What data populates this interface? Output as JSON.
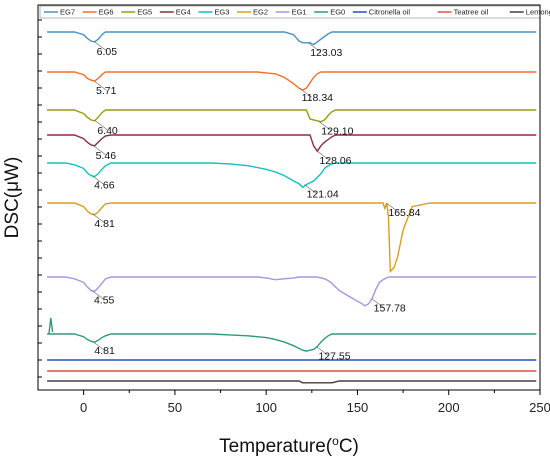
{
  "chart_data": {
    "type": "line",
    "xlabel": "Temperature(",
    "xlabel_sup": "o",
    "xlabel_tail": "C)",
    "ylabel": "DSC(μW)",
    "xlim": [
      -25,
      250
    ],
    "xticks": [
      0,
      50,
      100,
      150,
      200,
      250
    ],
    "grid": false,
    "legend_position": "top",
    "x": [
      -20,
      -15,
      -10,
      -5,
      0,
      2,
      4,
      6,
      8,
      10,
      12,
      15,
      20,
      30,
      40,
      50,
      60,
      70,
      80,
      90,
      95,
      100,
      105,
      110,
      115,
      118,
      120,
      122,
      124,
      126,
      128,
      130,
      132,
      134,
      136,
      138,
      140,
      145,
      150,
      152,
      154,
      156,
      158,
      160,
      162,
      164,
      165,
      166,
      167,
      168,
      170,
      172,
      175,
      180,
      190,
      200,
      210,
      220,
      230,
      240,
      248
    ],
    "series": [
      {
        "name": "EG7",
        "color": "#4a90c4",
        "offset": 0,
        "values": [
          0,
          0,
          0,
          0,
          -0.15,
          -0.35,
          -0.5,
          -0.55,
          -0.4,
          -0.15,
          0,
          0,
          0,
          0,
          0,
          0,
          0,
          0,
          0,
          0,
          0,
          0,
          0,
          0,
          -0.15,
          -0.5,
          -0.6,
          -0.6,
          -0.6,
          -0.7,
          -0.55,
          -0.4,
          -0.25,
          -0.1,
          0,
          0,
          0,
          0,
          0,
          0,
          0,
          0,
          0,
          0,
          0,
          0,
          0,
          0,
          0,
          0,
          0,
          0,
          0,
          0,
          0,
          0,
          0,
          0,
          0,
          0,
          0
        ]
      },
      {
        "name": "EG6",
        "color": "#f07030",
        "offset": 0,
        "values": [
          0,
          0,
          0,
          0,
          -0.15,
          -0.35,
          -0.45,
          -0.5,
          -0.35,
          -0.15,
          0,
          0,
          0,
          0,
          0,
          0,
          0,
          0,
          0,
          0,
          0,
          -0.05,
          -0.1,
          -0.3,
          -0.65,
          -0.9,
          -1.0,
          -0.9,
          -0.6,
          -0.3,
          -0.1,
          0,
          0,
          0,
          0,
          0,
          0,
          0,
          0,
          0,
          0,
          0,
          0,
          0,
          0,
          0,
          0,
          0,
          0,
          0,
          0,
          0,
          0,
          0,
          0,
          0,
          0,
          0,
          0,
          0,
          0
        ]
      },
      {
        "name": "EG5",
        "color": "#9a9a10",
        "offset": 0,
        "values": [
          0,
          0,
          0,
          0,
          -0.2,
          -0.4,
          -0.55,
          -0.6,
          -0.4,
          -0.15,
          0,
          0,
          0,
          0,
          0,
          0,
          0,
          0,
          0,
          0,
          0,
          0,
          0,
          0,
          0,
          0,
          0,
          0,
          -0.5,
          -0.55,
          -0.6,
          -0.65,
          -0.55,
          -0.3,
          -0.1,
          0,
          0,
          0,
          0,
          0,
          0,
          0,
          0,
          0,
          0,
          0,
          0,
          0,
          0,
          0,
          0,
          0,
          0,
          0,
          0,
          0,
          0,
          0,
          0,
          0,
          0
        ]
      },
      {
        "name": "EG4",
        "color": "#8a2f3a",
        "offset": 0,
        "values": [
          0,
          0,
          0,
          0,
          -0.2,
          -0.4,
          -0.55,
          -0.6,
          -0.4,
          -0.2,
          -0.05,
          0,
          0,
          0,
          0,
          0,
          0,
          0,
          0,
          0,
          0,
          0,
          0,
          0,
          0,
          0,
          0,
          0,
          0,
          -0.6,
          -0.9,
          -0.6,
          -0.4,
          -0.25,
          -0.1,
          0,
          0,
          0,
          0,
          0,
          0,
          0,
          0,
          0,
          0,
          0,
          0,
          0,
          0,
          0,
          0,
          0,
          0,
          0,
          0,
          0,
          0,
          0,
          0,
          0,
          0
        ]
      },
      {
        "name": "EG3",
        "color": "#10c0c0",
        "offset": 0,
        "values": [
          0,
          0,
          0,
          -0.1,
          -0.3,
          -0.55,
          -0.7,
          -0.75,
          -0.6,
          -0.35,
          -0.15,
          0,
          0,
          0,
          0,
          0,
          0,
          0,
          -0.05,
          -0.15,
          -0.25,
          -0.35,
          -0.5,
          -0.7,
          -1.0,
          -1.15,
          -1.35,
          -1.2,
          -1.1,
          -1.0,
          -0.8,
          -0.6,
          -0.3,
          -0.15,
          -0.05,
          0,
          0,
          0,
          0,
          0,
          0,
          0,
          0,
          0,
          0,
          0,
          0,
          0,
          0,
          0,
          0,
          0,
          0,
          0,
          0,
          0,
          0,
          0,
          0,
          0,
          0
        ]
      },
      {
        "name": "EG2",
        "color": "#d4a020",
        "offset": 0,
        "values": [
          0,
          0,
          0,
          0,
          -0.2,
          -0.45,
          -0.6,
          -0.65,
          -0.5,
          -0.25,
          -0.05,
          0,
          0,
          0,
          0,
          0,
          0,
          0,
          0,
          0,
          0,
          0,
          0,
          0,
          0,
          0,
          0,
          0,
          0,
          0,
          0,
          0,
          0,
          0,
          0,
          0,
          0,
          0,
          0,
          0,
          0,
          0,
          0,
          0,
          0,
          0,
          -0.3,
          0,
          -0.8,
          -3.8,
          -3.6,
          -3.0,
          -1.5,
          -0.2,
          0,
          0,
          0,
          0,
          0,
          0,
          0
        ]
      },
      {
        "name": "EG1",
        "color": "#b090e0",
        "offset": 0,
        "values": [
          0,
          0,
          0,
          -0.1,
          -0.3,
          -0.55,
          -0.75,
          -0.8,
          -0.6,
          -0.35,
          -0.1,
          0,
          0,
          0,
          0,
          0,
          0,
          0,
          0,
          0,
          0,
          -0.05,
          -0.15,
          -0.1,
          -0.05,
          0,
          0,
          0,
          0,
          0,
          0,
          -0.05,
          -0.1,
          -0.2,
          -0.35,
          -0.55,
          -0.75,
          -1.05,
          -1.35,
          -1.45,
          -1.6,
          -1.5,
          -1.2,
          -0.7,
          -0.3,
          -0.15,
          -0.1,
          -0.05,
          0,
          0,
          0,
          0,
          0,
          0,
          0,
          0,
          0,
          0,
          0,
          0,
          0
        ]
      },
      {
        "name": "EG0",
        "color": "#2a9a80",
        "offset": 0,
        "values": [
          0,
          0,
          0,
          0,
          -0.15,
          -0.3,
          -0.4,
          -0.45,
          -0.35,
          -0.2,
          -0.1,
          0,
          0,
          0,
          0,
          0,
          0,
          0,
          -0.05,
          -0.1,
          -0.15,
          -0.2,
          -0.3,
          -0.45,
          -0.65,
          -0.8,
          -0.9,
          -0.95,
          -0.9,
          -0.85,
          -0.7,
          -0.45,
          -0.25,
          -0.1,
          0,
          0,
          0,
          0,
          0,
          0,
          0,
          0,
          0,
          0,
          0,
          0,
          0,
          0,
          0,
          0,
          0,
          0,
          0,
          0,
          0,
          0,
          0,
          0,
          0,
          0,
          0
        ]
      },
      {
        "name": "Citronella oil",
        "color": "#2050c0",
        "offset": 0,
        "values": [
          0,
          0,
          0,
          0,
          0,
          0,
          0,
          0,
          0,
          0,
          0,
          0,
          0,
          0,
          0,
          0,
          0,
          0,
          0,
          0,
          0,
          0,
          0,
          0,
          0,
          0,
          0,
          0,
          0,
          0,
          0,
          0,
          0,
          0,
          0,
          0,
          0,
          0,
          0,
          0,
          0,
          0,
          0,
          0,
          0,
          0,
          0,
          0,
          0,
          0,
          0,
          0,
          0,
          0,
          0,
          0,
          0,
          0,
          0,
          0,
          0
        ]
      },
      {
        "name": "Teatree oil",
        "color": "#e05040",
        "offset": 0,
        "values": [
          0,
          0,
          0,
          0,
          0,
          0,
          0,
          0,
          0,
          0,
          0,
          0,
          0,
          0,
          0,
          0,
          0,
          0,
          0,
          0,
          0,
          0,
          0,
          0,
          0,
          0,
          0,
          0,
          0,
          0,
          0,
          0,
          0,
          0,
          0,
          0,
          0,
          0,
          0,
          0,
          0,
          0,
          0,
          0,
          0,
          0,
          0,
          0,
          0,
          0,
          0,
          0,
          0,
          0,
          0,
          0,
          0,
          0,
          0,
          0,
          0
        ]
      },
      {
        "name": "Lemongrass oil",
        "color": "#404040",
        "offset": 0,
        "values": [
          0,
          0,
          0,
          0,
          0,
          0,
          0,
          0,
          0,
          0,
          0,
          0,
          0,
          0,
          0,
          0,
          0,
          0,
          0,
          0,
          0,
          0,
          0,
          0,
          0,
          0,
          -0.1,
          -0.1,
          -0.1,
          -0.1,
          -0.1,
          -0.1,
          -0.1,
          -0.1,
          -0.1,
          -0.05,
          0,
          0,
          0,
          0,
          0,
          0,
          0,
          0,
          0,
          0,
          0,
          0,
          0,
          0,
          0,
          0,
          0,
          0,
          0,
          0,
          0,
          0,
          0,
          0,
          0
        ]
      }
    ],
    "annotations": [
      {
        "series": "EG7",
        "label": "6.05",
        "x": 6.05
      },
      {
        "series": "EG7",
        "label": "123.03",
        "x": 123.03
      },
      {
        "series": "EG6",
        "label": "5.71",
        "x": 5.71
      },
      {
        "series": "EG6",
        "label": "118.34",
        "x": 118.34
      },
      {
        "series": "EG5",
        "label": "6.40",
        "x": 6.4
      },
      {
        "series": "EG5",
        "label": "129.10",
        "x": 129.1
      },
      {
        "series": "EG4",
        "label": "5.46",
        "x": 5.46
      },
      {
        "series": "EG4",
        "label": "128.06",
        "x": 128.06
      },
      {
        "series": "EG3",
        "label": "4.66",
        "x": 4.66
      },
      {
        "series": "EG3",
        "label": "121.04",
        "x": 121.04
      },
      {
        "series": "EG2",
        "label": "4.81",
        "x": 4.81
      },
      {
        "series": "EG2",
        "label": "165.84",
        "x": 165.84
      },
      {
        "series": "EG1",
        "label": "4.55",
        "x": 4.55
      },
      {
        "series": "EG1",
        "label": "157.78",
        "x": 157.78
      },
      {
        "series": "EG0",
        "label": "4.81",
        "x": 4.81
      },
      {
        "series": "EG0",
        "label": "127.55",
        "x": 127.55
      }
    ]
  }
}
